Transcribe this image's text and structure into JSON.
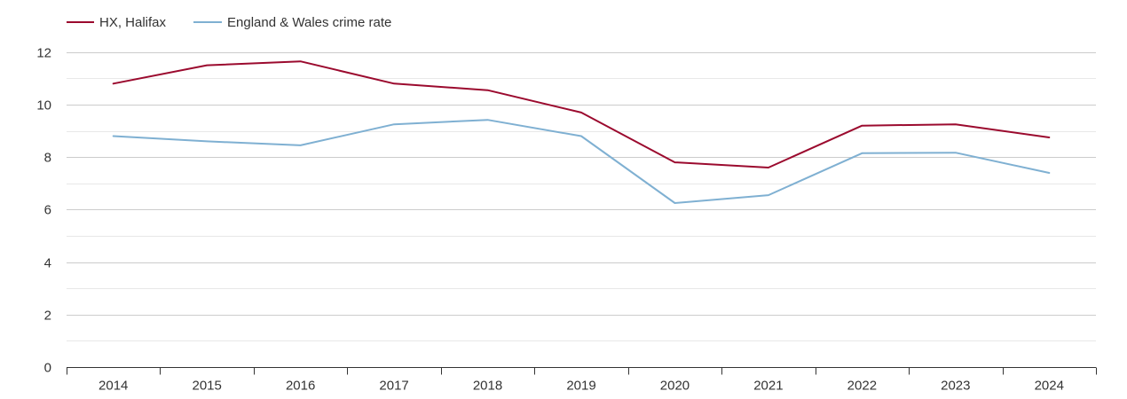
{
  "chart_data": {
    "type": "line",
    "title": "",
    "xlabel": "",
    "ylabel": "",
    "categories": [
      "2014",
      "2015",
      "2016",
      "2017",
      "2018",
      "2019",
      "2020",
      "2021",
      "2022",
      "2023",
      "2024"
    ],
    "ylim": [
      0,
      12.5
    ],
    "yticks": [
      0,
      2,
      4,
      6,
      8,
      10,
      12
    ],
    "yminor": [
      1,
      3,
      5,
      7,
      9,
      11
    ],
    "grid": true,
    "legend_position": "top-left",
    "series": [
      {
        "name": "HX, Halifax",
        "color": "#9b0a2e",
        "values": [
          10.8,
          11.5,
          11.65,
          10.8,
          10.55,
          9.7,
          7.8,
          7.6,
          9.2,
          9.25,
          8.75
        ]
      },
      {
        "name": "England & Wales crime rate",
        "color": "#7fb0d2",
        "values": [
          8.8,
          8.6,
          8.45,
          9.25,
          9.42,
          8.8,
          6.25,
          6.55,
          8.15,
          8.17,
          7.4
        ]
      }
    ]
  }
}
